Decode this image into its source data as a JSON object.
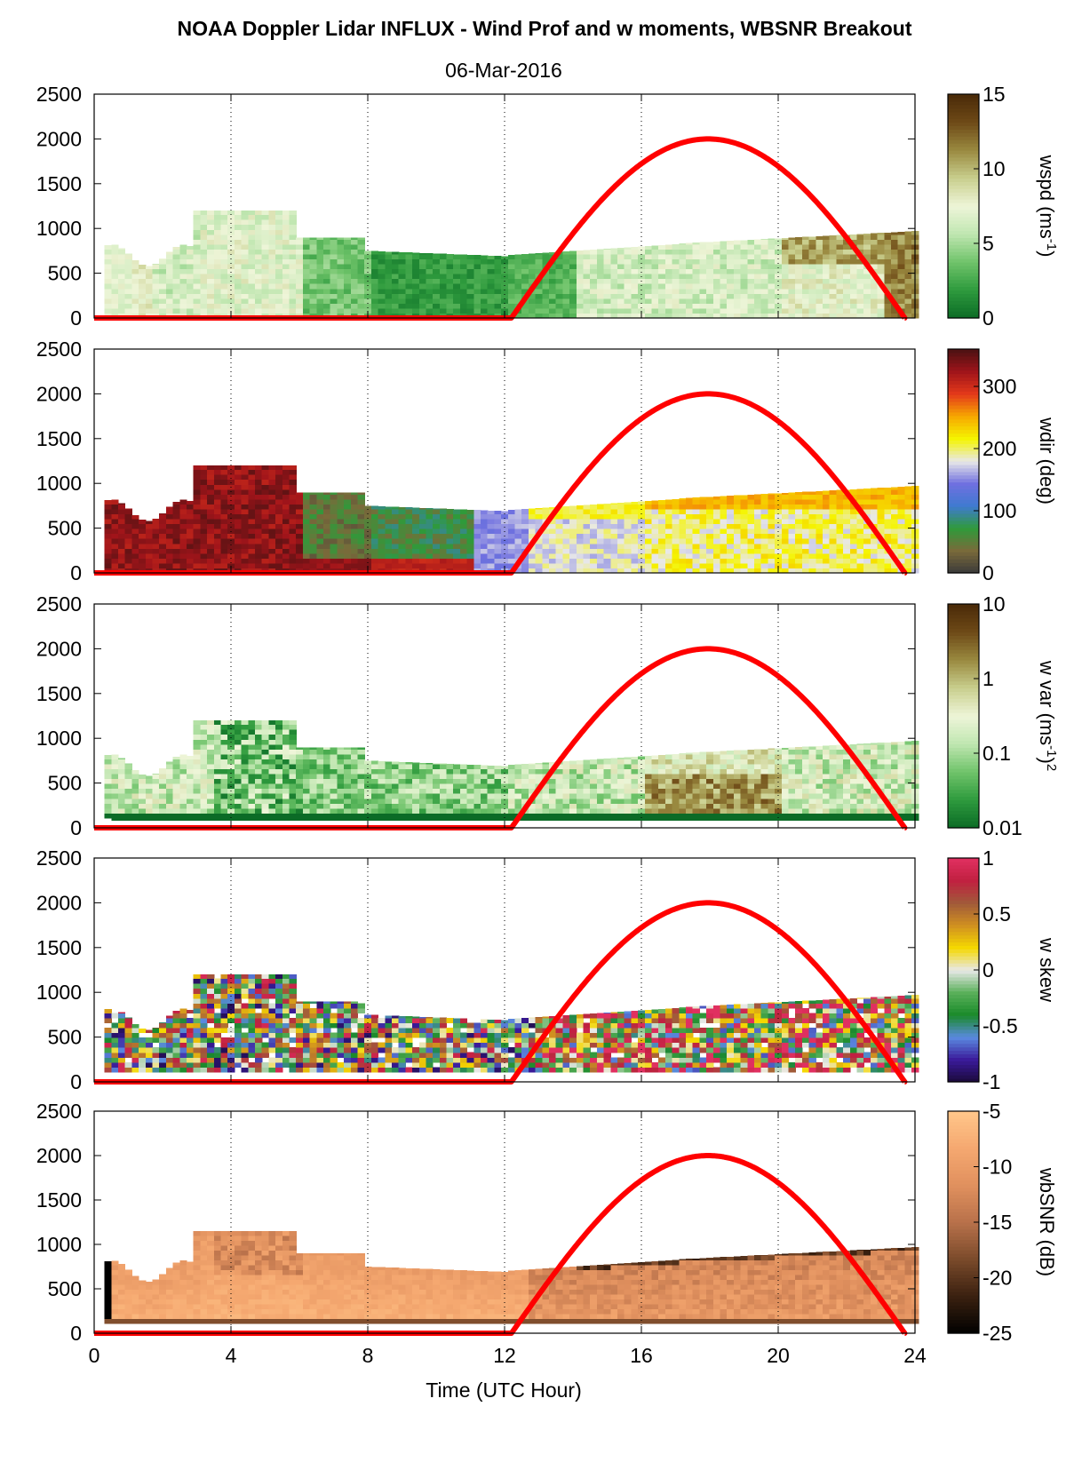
{
  "title": "NOAA Doppler Lidar INFLUX - Wind Prof and w moments, WBSNR Breakout",
  "subtitle": "06-Mar-2016",
  "xlabel": "Time (UTC Hour)",
  "x_ticks": [
    "0",
    "4",
    "8",
    "12",
    "16",
    "20",
    "24"
  ],
  "y_ticks": [
    "0",
    "500",
    "1000",
    "1500",
    "2000",
    "2500"
  ],
  "chart_data": [
    {
      "type": "heatmap",
      "name": "wspd",
      "colorbar_label": "wspd (ms",
      "colorbar_label_sup": "-1",
      "colorbar_label_tail": ")",
      "colorbar_ticks": [
        "0",
        "5",
        "10",
        "15"
      ],
      "clim": [
        0,
        15
      ],
      "scale": "linear",
      "colormap": [
        "#0b6b26",
        "#2e9a3d",
        "#6fc36a",
        "#bfe6b0",
        "#eef5d8",
        "#c9cf8e",
        "#9a8a40",
        "#6e4a17",
        "#4a2a08"
      ],
      "xlim": [
        0,
        24
      ],
      "ylim": [
        0,
        2500
      ],
      "grid_x": [
        4,
        8,
        12,
        16,
        20,
        24
      ],
      "sun_curve": {
        "color": "#ff0000",
        "rise_hour": 12.2,
        "set_hour": 23.7,
        "peak_height": 2000,
        "peak_hour": 17.9
      }
    },
    {
      "type": "heatmap",
      "name": "wdir",
      "colorbar_label": "wdir (deg)",
      "colorbar_ticks": [
        "0",
        "100",
        "200",
        "300"
      ],
      "clim": [
        0,
        360
      ],
      "scale": "linear",
      "colormap": [
        "#3a3a3a",
        "#7a6a3a",
        "#2f9a3a",
        "#3f7ad0",
        "#7070e0",
        "#e8e8e8",
        "#f5f500",
        "#f7a800",
        "#e43a1a",
        "#a0141a",
        "#4a1212"
      ],
      "xlim": [
        0,
        24
      ],
      "ylim": [
        0,
        2500
      ],
      "grid_x": [
        4,
        8,
        12,
        16,
        20,
        24
      ],
      "sun_curve": {
        "color": "#ff0000",
        "rise_hour": 12.2,
        "set_hour": 23.7,
        "peak_height": 2000,
        "peak_hour": 17.9
      }
    },
    {
      "type": "heatmap",
      "name": "w var",
      "colorbar_label": "w var (ms",
      "colorbar_label_sup": "-1",
      "colorbar_label_tail": ")",
      "colorbar_label_sup2": "2",
      "colorbar_ticks": [
        "0.01",
        "0.1",
        "1",
        "10"
      ],
      "clim": [
        0.01,
        10
      ],
      "scale": "log",
      "colormap": [
        "#0b6b26",
        "#2e9a3d",
        "#6fc36a",
        "#bfe6b0",
        "#eef5d8",
        "#c9cf8e",
        "#9a8a40",
        "#6e4a17",
        "#4a2a08"
      ],
      "xlim": [
        0,
        24
      ],
      "ylim": [
        0,
        2500
      ],
      "grid_x": [
        4,
        8,
        12,
        16,
        20,
        24
      ],
      "sun_curve": {
        "color": "#ff0000",
        "rise_hour": 12.2,
        "set_hour": 23.7,
        "peak_height": 2000,
        "peak_hour": 17.9
      }
    },
    {
      "type": "heatmap",
      "name": "w skew",
      "colorbar_label": "w skew",
      "colorbar_ticks": [
        "-1",
        "-0.5",
        "0",
        "0.5",
        "1"
      ],
      "clim": [
        -1,
        1
      ],
      "scale": "linear",
      "colormap": [
        "#1a0a3a",
        "#3a1a9a",
        "#5a8ae0",
        "#1a8a2a",
        "#5ab05a",
        "#e8e8e8",
        "#f5d800",
        "#d09020",
        "#a05a3a",
        "#c02040",
        "#e03060"
      ],
      "xlim": [
        0,
        24
      ],
      "ylim": [
        0,
        2500
      ],
      "grid_x": [
        4,
        8,
        12,
        16,
        20,
        24
      ],
      "sun_curve": {
        "color": "#ff0000",
        "rise_hour": 12.2,
        "set_hour": 23.7,
        "peak_height": 2000,
        "peak_hour": 17.9
      }
    },
    {
      "type": "heatmap",
      "name": "wbSNR",
      "colorbar_label": "wbSNR (dB)",
      "colorbar_ticks": [
        "-25",
        "-20",
        "-15",
        "-10",
        "-5"
      ],
      "clim": [
        -25,
        -5
      ],
      "scale": "linear",
      "colormap": [
        "#000000",
        "#3a2010",
        "#7a4a2a",
        "#b8714a",
        "#e0905e",
        "#f5a870",
        "#ffc68a"
      ],
      "xlim": [
        0,
        24
      ],
      "ylim": [
        0,
        2500
      ],
      "grid_x": [
        4,
        8,
        12,
        16,
        20,
        24
      ],
      "sun_curve": {
        "color": "#ff0000",
        "rise_hour": 12.2,
        "set_hour": 23.7,
        "peak_height": 2000,
        "peak_hour": 17.9
      }
    }
  ]
}
